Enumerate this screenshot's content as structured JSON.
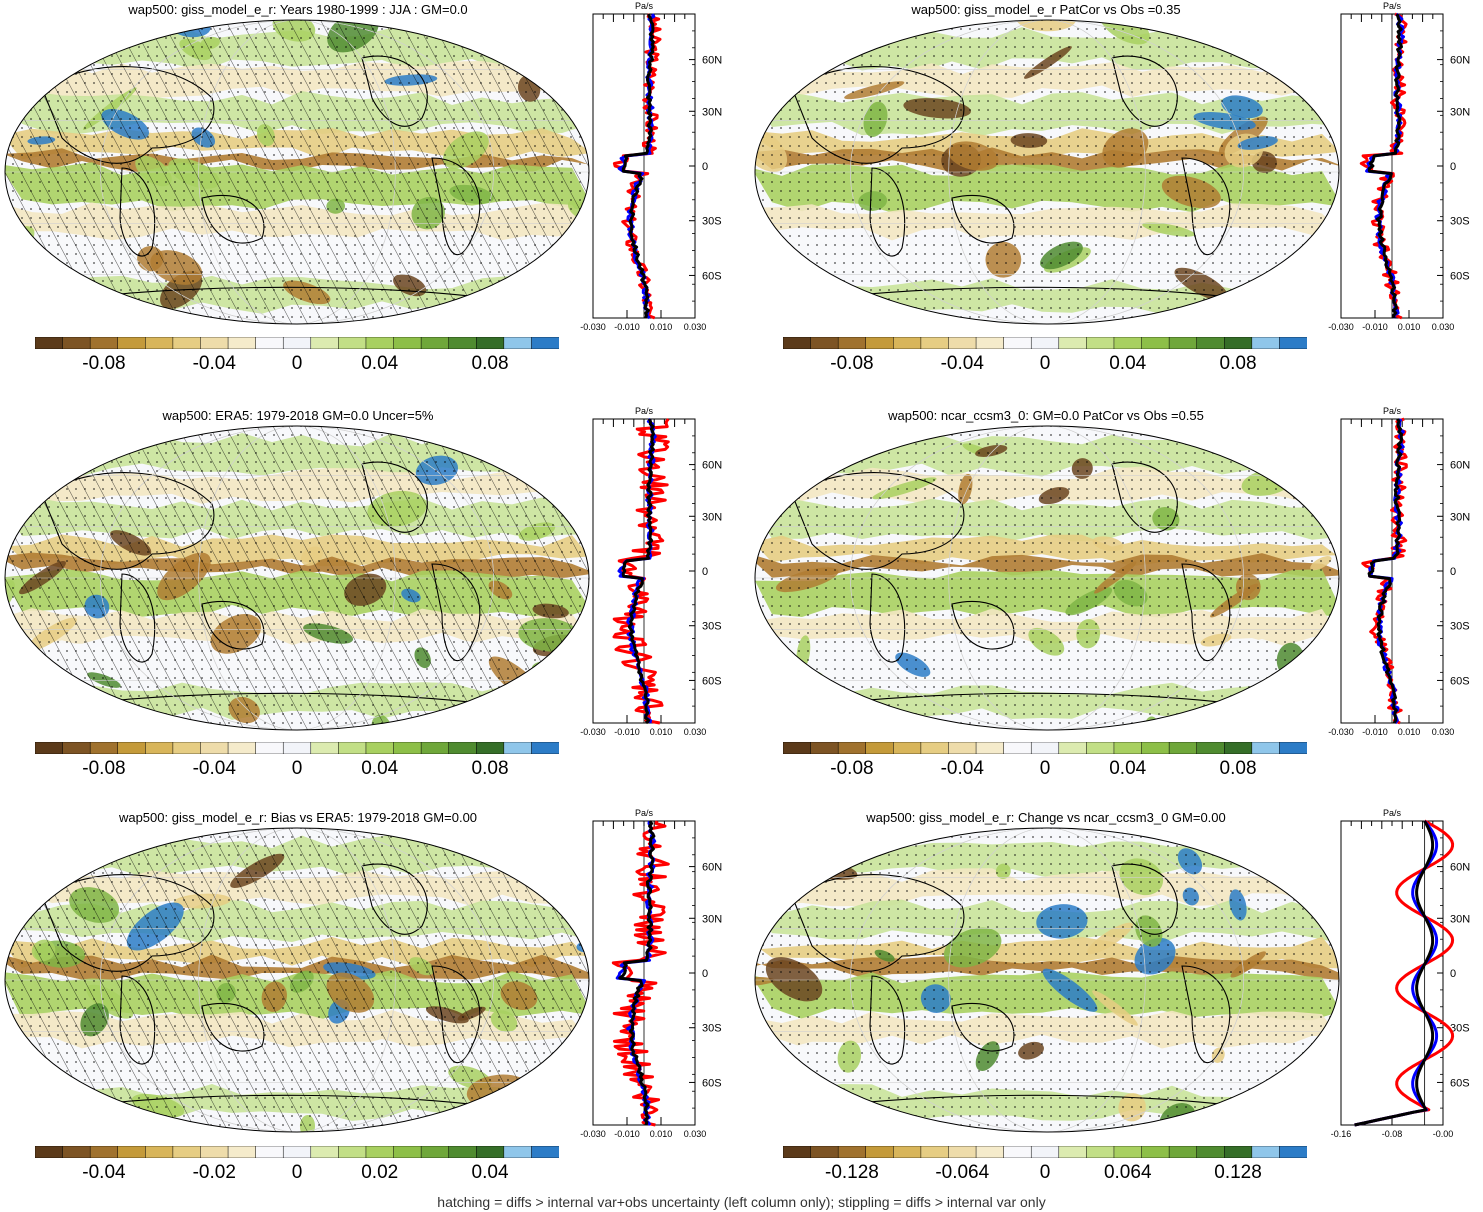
{
  "panels": [
    {
      "id": "p1",
      "title": "wap500: giss_model_e_r: Years 1980-1999 : JJA : GM=0.0",
      "colorbar_labels": [
        "-0.08",
        "-0.04",
        "0",
        "0.04",
        "0.08"
      ],
      "profile_x_ticks": [
        "-0.030",
        "-0.010",
        "0.010",
        "0.030"
      ],
      "profile_units": "Pa/s",
      "profile_lat_labels": [
        "60N",
        "30N",
        "0",
        "30S",
        "60S"
      ],
      "hatched": true
    },
    {
      "id": "p2",
      "title": "wap500: giss_model_e_r PatCor vs Obs =0.35",
      "colorbar_labels": [
        "-0.08",
        "-0.04",
        "0",
        "0.04",
        "0.08"
      ],
      "profile_x_ticks": [
        "-0.030",
        "-0.010",
        "0.010",
        "0.030"
      ],
      "profile_units": "Pa/s",
      "profile_lat_labels": [
        "60N",
        "30N",
        "0",
        "30S",
        "60S"
      ],
      "hatched": false
    },
    {
      "id": "p3",
      "title": "wap500: ERA5: 1979-2018 GM=0.0 Uncer=5%",
      "colorbar_labels": [
        "-0.08",
        "-0.04",
        "0",
        "0.04",
        "0.08"
      ],
      "profile_x_ticks": [
        "-0.030",
        "-0.010",
        "0.010",
        "0.030"
      ],
      "profile_units": "Pa/s",
      "profile_lat_labels": [
        "60N",
        "30N",
        "0",
        "30S",
        "60S"
      ],
      "hatched": true
    },
    {
      "id": "p4",
      "title": "wap500: ncar_ccsm3_0: GM=0.0 PatCor vs Obs =0.55",
      "colorbar_labels": [
        "-0.08",
        "-0.04",
        "0",
        "0.04",
        "0.08"
      ],
      "profile_x_ticks": [
        "-0.030",
        "-0.010",
        "0.010",
        "0.030"
      ],
      "profile_units": "Pa/s",
      "profile_lat_labels": [
        "60N",
        "30N",
        "0",
        "30S",
        "60S"
      ],
      "hatched": false
    },
    {
      "id": "p5",
      "title": "wap500: giss_model_e_r: Bias vs ERA5: 1979-2018 GM=0.00",
      "colorbar_labels": [
        "-0.04",
        "-0.02",
        "0",
        "0.02",
        "0.04"
      ],
      "profile_x_ticks": [
        "-0.030",
        "-0.010",
        "0.010",
        "0.030"
      ],
      "profile_units": "Pa/s",
      "profile_lat_labels": [
        "60N",
        "30N",
        "0",
        "30S",
        "60S"
      ],
      "hatched": true
    },
    {
      "id": "p6",
      "title": "wap500: giss_model_e_r: Change vs ncar_ccsm3_0 GM=0.00",
      "colorbar_labels": [
        "-0.128",
        "-0.064",
        "0",
        "0.064",
        "0.128"
      ],
      "profile_x_ticks": [
        "-0.16",
        "-0.08",
        "-0.00"
      ],
      "profile_units": "Pa/s",
      "profile_lat_labels": [
        "60N",
        "30N",
        "0",
        "30S",
        "60S"
      ],
      "hatched": false
    }
  ],
  "colorbar_colors": [
    "#5b3a1a",
    "#7d5424",
    "#a0722e",
    "#c49a3a",
    "#d8b55a",
    "#e6cd83",
    "#eedcaa",
    "#f5ebcb",
    "#f8f8fb",
    "#f2f4f9",
    "#dcebb0",
    "#c2df86",
    "#a8d060",
    "#8dbf48",
    "#6fa73a",
    "#4f8b30",
    "#356e28",
    "#8fc6ea",
    "#2c7cc7"
  ],
  "profile_line_colors": {
    "model": "#ff0000",
    "obs": "#0000ff",
    "ens": "#000000"
  },
  "caption": "hatching = diffs > internal var+obs uncertainty (left column only); stippling = diffs > internal var only"
}
